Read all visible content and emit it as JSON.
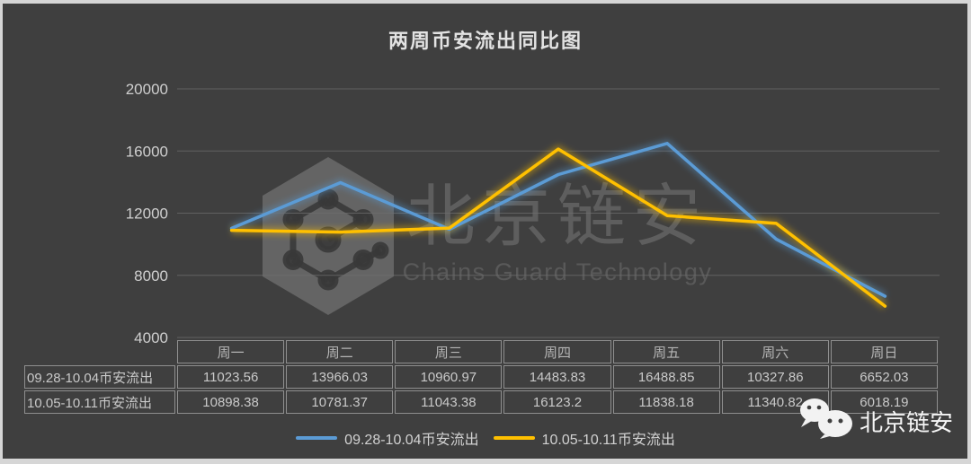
{
  "title": "两周币安流出同比图",
  "colors": {
    "bg": "#3F3F3F",
    "frame": "#D6D6D6",
    "grid": "#6E6E6E",
    "axis_text": "#CFCFCF",
    "table_border": "#8F8F8F",
    "table_text": "#C9C9C9",
    "header_text": "#B5B5B5",
    "legend_text": "#D2D2D2",
    "watermark": "#D8D8D8",
    "footer_text": "#F5F5F5",
    "series1": "#5B9BD5",
    "series2": "#FFC000"
  },
  "chart_data": {
    "type": "line",
    "title": "两周币安流出同比图",
    "categories": [
      "周一",
      "周二",
      "周三",
      "周四",
      "周五",
      "周六",
      "周日"
    ],
    "series": [
      {
        "name": "09.28-10.04币安流出",
        "color": "#5B9BD5",
        "values": [
          11023.56,
          13966.03,
          10960.97,
          14483.83,
          16488.85,
          10327.86,
          6652.03
        ]
      },
      {
        "name": "10.05-10.11币安流出",
        "color": "#FFC000",
        "values": [
          10898.38,
          10781.37,
          11043.38,
          16123.2,
          11838.18,
          11340.82,
          6018.19
        ]
      }
    ],
    "ylim": [
      4000,
      20000
    ],
    "yticks": [
      4000,
      8000,
      12000,
      16000,
      20000
    ],
    "xlabel": "",
    "ylabel": "",
    "grid": true,
    "legend_position": "bottom",
    "data_table_shown": true
  },
  "watermark": {
    "brand": "北京链安",
    "subtitle": "Chains Guard Technology"
  },
  "footer_brand": {
    "label": "北京链安"
  }
}
